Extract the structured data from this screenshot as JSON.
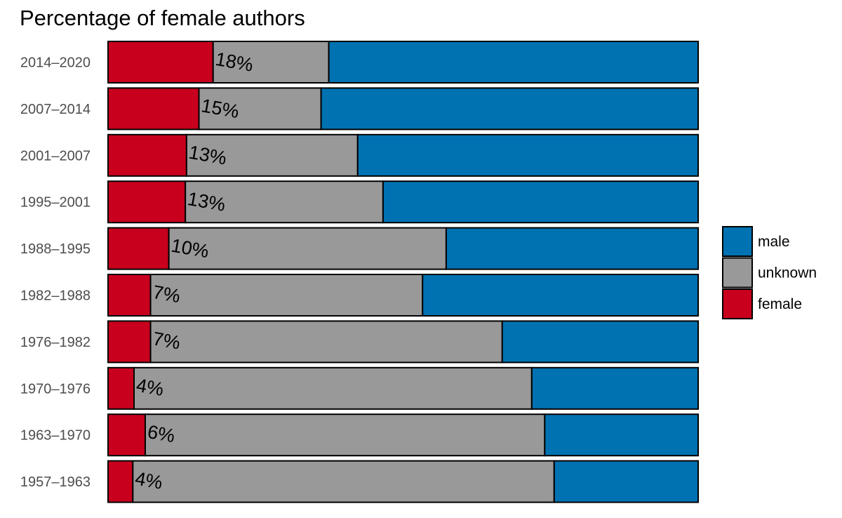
{
  "chart_data": {
    "type": "bar",
    "orientation": "horizontal",
    "stacked": "percent",
    "title": "Percentage of female authors",
    "xlabel": "",
    "ylabel": "",
    "xlim": [
      0,
      100
    ],
    "grid": false,
    "legend_position": "right",
    "categories": [
      "2014–2020",
      "2007–2014",
      "2001–2007",
      "1995–2001",
      "1988–1995",
      "1982–1988",
      "1976–1982",
      "1970–1976",
      "1963–1970",
      "1957–1963"
    ],
    "series": [
      {
        "name": "female",
        "color": "#C8001E",
        "values": [
          17.8,
          15.4,
          13.3,
          13.1,
          10.3,
          7.2,
          7.2,
          4.4,
          6.3,
          4.2
        ]
      },
      {
        "name": "unknown",
        "color": "#999999",
        "values": [
          19.6,
          20.7,
          29.0,
          33.5,
          47.0,
          46.1,
          59.6,
          67.4,
          67.7,
          71.4
        ]
      },
      {
        "name": "male",
        "color": "#0072B2",
        "values": [
          62.6,
          63.9,
          57.7,
          53.4,
          42.7,
          46.7,
          33.2,
          28.2,
          26.0,
          24.4
        ]
      }
    ],
    "data_labels": [
      "18%",
      "15%",
      "13%",
      "13%",
      "10%",
      "7%",
      "7%",
      "4%",
      "6%",
      "4%"
    ],
    "legend_order": [
      "male",
      "unknown",
      "female"
    ]
  }
}
